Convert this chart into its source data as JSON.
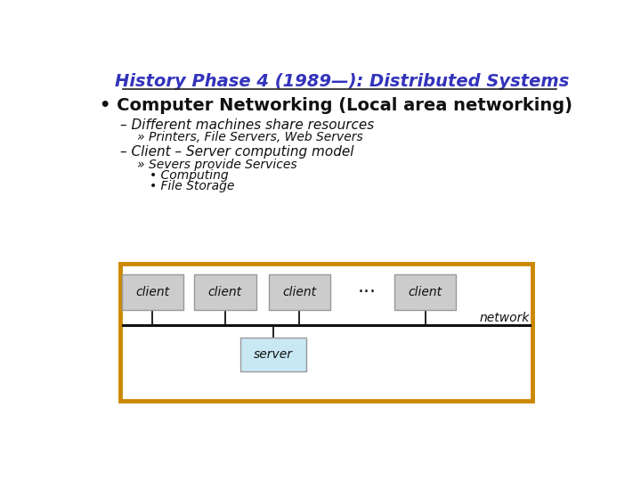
{
  "title": "History Phase 4 (1989—): Distributed Systems",
  "title_color": "#3333bb",
  "bg_color": "#ffffff",
  "bullet_text": "• Computer Networking (Local area networking)",
  "sub1": "– Different machines share resources",
  "sub1a": "» Printers, File Servers, Web Servers",
  "sub2": "– Client – Server computing model",
  "sub2a": "» Severs provide Services",
  "sub2b": "• Computing",
  "sub2c": "• File Storage",
  "diagram_border_color": "#cc8800",
  "client_box_color": "#cccccc",
  "server_box_color": "#c8e8f4",
  "network_line_color": "#111111",
  "box_edge_color": "#999999",
  "client_label": "client",
  "server_label": "server",
  "network_label": "network",
  "dots_label": "···",
  "title_fs": 14,
  "bullet_fs": 14,
  "sub1_fs": 11,
  "sub1a_fs": 10,
  "diagram_label_fs": 10,
  "network_label_fs": 10
}
